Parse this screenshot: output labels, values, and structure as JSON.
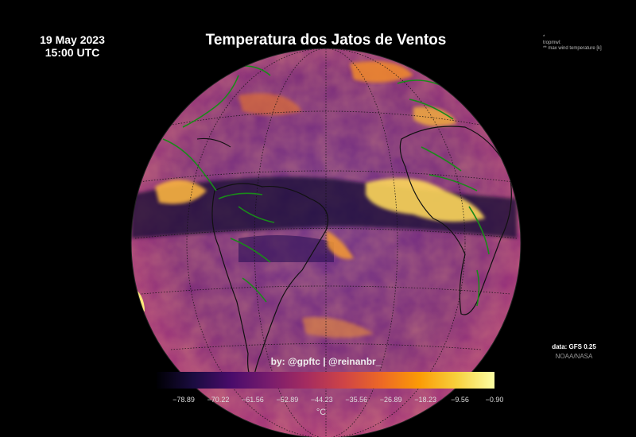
{
  "header": {
    "date": "19 May 2023",
    "time": "15:00 UTC",
    "title": "Temperatura dos Jatos de Ventos"
  },
  "metadata": {
    "line1": "*",
    "line2": "tropmwl:",
    "line3": "** max wind temperature [k]"
  },
  "source": {
    "data": "data: GFS 0.25",
    "org": "NOAA/NASA"
  },
  "credit": "by: @gpftc | @reinanbr_",
  "colorbar": {
    "unit": "°C",
    "ticks": [
      "−78.89",
      "−70.22",
      "−61.56",
      "−52.89",
      "−44.23",
      "−35.56",
      "−26.89",
      "−18.23",
      "−9.56",
      "−0.90"
    ],
    "colormap": [
      "#000004",
      "#1b0c41",
      "#4a0c6b",
      "#781c6d",
      "#a52c60",
      "#cf4446",
      "#ed6925",
      "#fb9b06",
      "#f7d13d",
      "#fcffa4"
    ]
  },
  "map": {
    "projection": "orthographic",
    "land_outline_color": "#1a8a1a",
    "coast_color": "#000000"
  }
}
